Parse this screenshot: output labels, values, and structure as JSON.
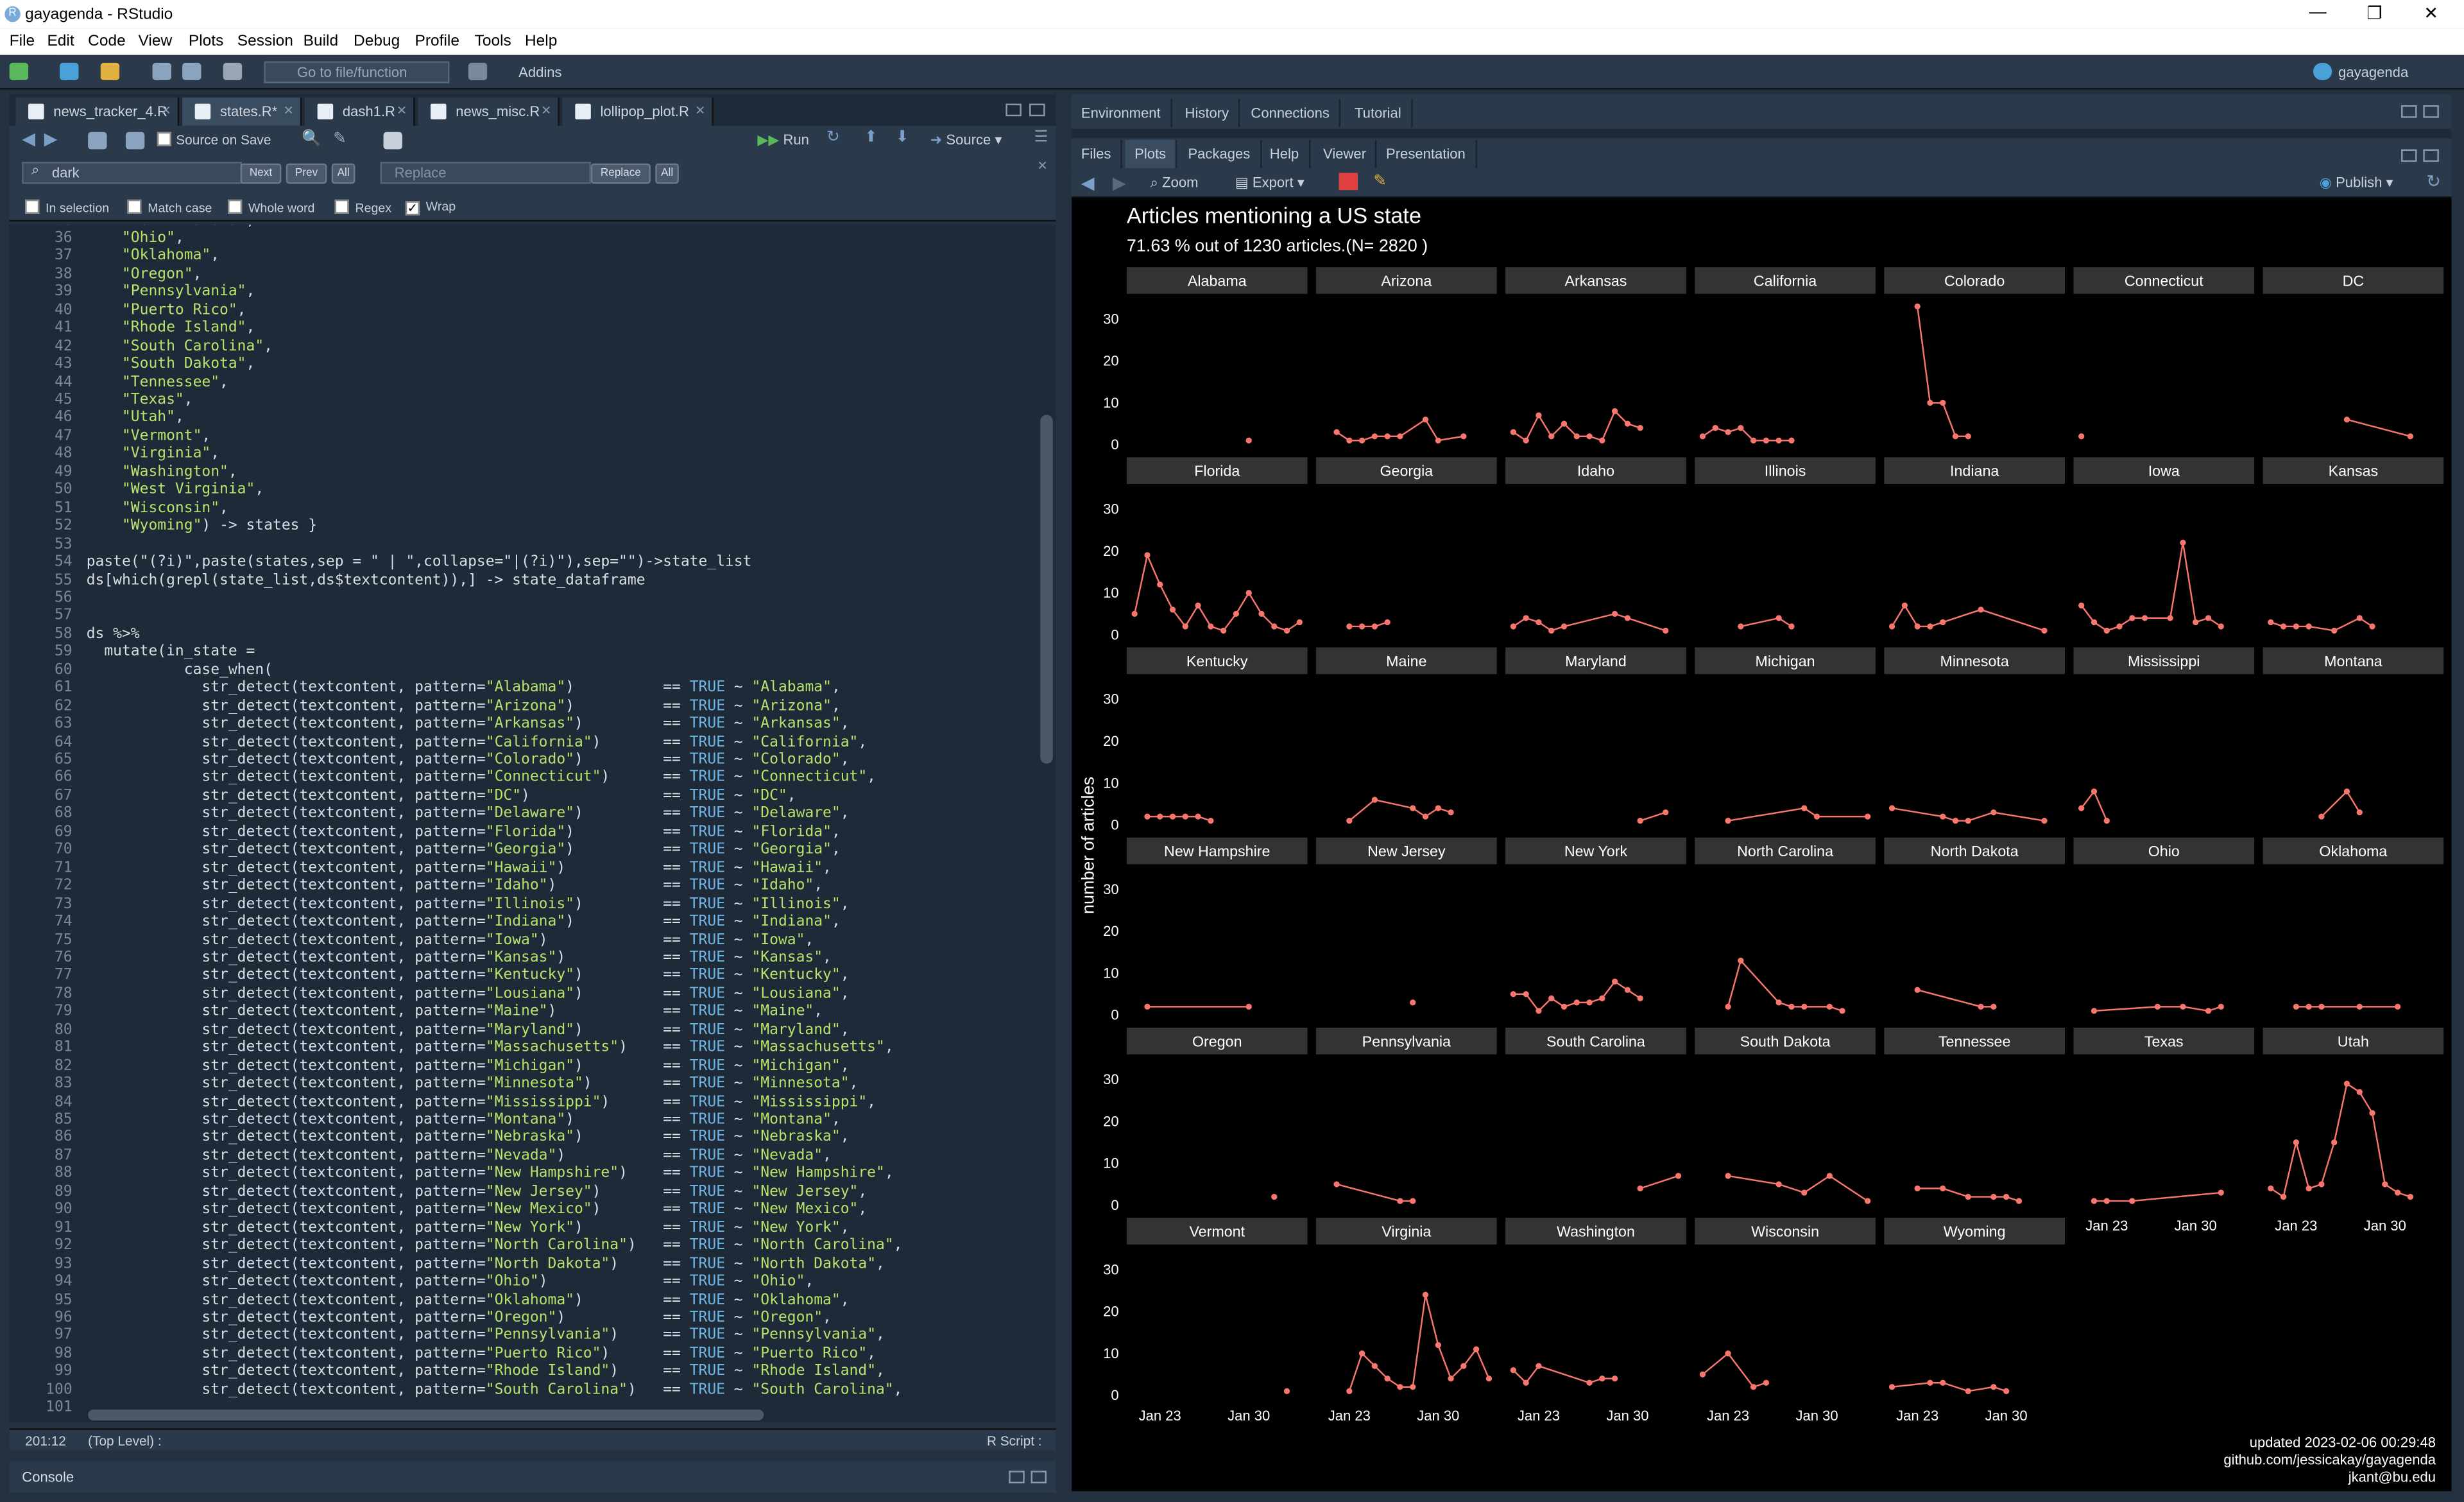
{
  "window": {
    "title": "gayagenda - RStudio",
    "logo": "R"
  },
  "menu": [
    "File",
    "Edit",
    "Code",
    "View",
    "Plots",
    "Session",
    "Build",
    "Debug",
    "Profile",
    "Tools",
    "Help"
  ],
  "toolbar": {
    "goto_placeholder": "Go to file/function",
    "addins": "Addins",
    "project": "gayagenda"
  },
  "editor": {
    "tabs": [
      "news_tracker_4.R",
      "states.R*",
      "dash1.R",
      "news_misc.R",
      "lollipop_plot.R"
    ],
    "source_on_save": "Source on Save",
    "run": "Run",
    "source": "Source",
    "find": {
      "value": "dark",
      "next": "Next",
      "prev": "Prev",
      "all": "All",
      "replace_placeholder": "Replace",
      "replace": "Replace",
      "replace_all": "All"
    },
    "options": [
      "In selection",
      "Match case",
      "Whole word",
      "Regex",
      "Wrap"
    ],
    "first_line_partial": "    \"North Dakota\",",
    "status": {
      "position": "201:12",
      "scope": "(Top Level) :",
      "filetype": "R Script :"
    }
  },
  "states": [
    "Alabama",
    "Arizona",
    "Arkansas",
    "California",
    "Colorado",
    "Connecticut",
    "DC",
    "Delaware",
    "Florida",
    "Georgia",
    "Hawaii",
    "Idaho",
    "Illinois",
    "Indiana",
    "Iowa",
    "Kansas",
    "Kentucky",
    "Lousiana",
    "Maine",
    "Maryland",
    "Massachusetts",
    "Michigan",
    "Minnesota",
    "Mississippi",
    "Montana",
    "Nebraska",
    "Nevada",
    "New Hampshire",
    "New Jersey",
    "New Mexico",
    "New York",
    "North Carolina",
    "North Dakota",
    "Ohio",
    "Oklahoma",
    "Oregon",
    "Pennsylvania",
    "Puerto Rico",
    "Rhode Island",
    "South Carolina",
    "South Dakota",
    "Tennessee",
    "Texas",
    "Utah",
    "Vermont",
    "Virginia",
    "Washington",
    "West Virginia",
    "Wisconsin",
    "Wyoming"
  ],
  "code": {
    "line54": "paste(\"(?i)\",paste(states,sep = \" | \",collapse=\"|(?i)\"),sep=\"\")->state_list",
    "line55": "ds[which(grepl(state_list,ds$textcontent)),] -> state_dataframe",
    "line58": "ds %>%",
    "line59": "  mutate(in_state =",
    "line60": "           case_when("
  },
  "console": {
    "label": "Console"
  },
  "right": {
    "tabs_top": [
      "Environment",
      "History",
      "Connections",
      "Tutorial"
    ],
    "tabs_bottom": [
      "Files",
      "Plots",
      "Packages",
      "Help",
      "Viewer",
      "Presentation"
    ],
    "zoom": "Zoom",
    "export": "Export",
    "publish": "Publish"
  },
  "chart_data": {
    "type": "line",
    "title": "Articles mentioning a US state",
    "subtitle": "71.63 % out of  1230  articles.(N= 2820 )",
    "ylabel": "number of articles",
    "xlabel": "",
    "yticks": [
      0,
      10,
      20,
      30
    ],
    "ylim": [
      0,
      33
    ],
    "xlim": [
      "Jan 21",
      "Feb 4"
    ],
    "xticks": [
      "Jan 23",
      "Jan 30"
    ],
    "line_color": "#f8766d",
    "caption": [
      "updated 2023-02-06 00:29:48",
      "github.com/jessicakay/gayagenda",
      "jkant@bu.edu"
    ],
    "facets": [
      {
        "name": "Alabama",
        "points": [
          [
            9,
            1
          ]
        ]
      },
      {
        "name": "Arizona",
        "points": [
          [
            1,
            3
          ],
          [
            2,
            1
          ],
          [
            3,
            1
          ],
          [
            4,
            2
          ],
          [
            5,
            2
          ],
          [
            6,
            2
          ],
          [
            8,
            6
          ],
          [
            9,
            1
          ],
          [
            11,
            2
          ]
        ]
      },
      {
        "name": "Arkansas",
        "points": [
          [
            0,
            3
          ],
          [
            1,
            1
          ],
          [
            2,
            7
          ],
          [
            3,
            2
          ],
          [
            4,
            5
          ],
          [
            5,
            2
          ],
          [
            6,
            2
          ],
          [
            7,
            1
          ],
          [
            8,
            8
          ],
          [
            9,
            5
          ],
          [
            10,
            4
          ]
        ]
      },
      {
        "name": "California",
        "points": [
          [
            0,
            2
          ],
          [
            1,
            4
          ],
          [
            2,
            3
          ],
          [
            3,
            4
          ],
          [
            4,
            1
          ],
          [
            5,
            1
          ],
          [
            6,
            1
          ],
          [
            7,
            1
          ]
        ]
      },
      {
        "name": "Colorado",
        "points": [
          [
            2,
            33
          ],
          [
            3,
            10
          ],
          [
            4,
            10
          ],
          [
            5,
            2
          ],
          [
            6,
            2
          ]
        ]
      },
      {
        "name": "Connecticut",
        "points": [
          [
            0,
            2
          ]
        ]
      },
      {
        "name": "DC",
        "points": [
          [
            6,
            6
          ],
          [
            11,
            2
          ]
        ]
      },
      {
        "name": "Florida",
        "points": [
          [
            0,
            5
          ],
          [
            1,
            19
          ],
          [
            2,
            12
          ],
          [
            3,
            6
          ],
          [
            4,
            2
          ],
          [
            5,
            7
          ],
          [
            6,
            2
          ],
          [
            7,
            1
          ],
          [
            8,
            5
          ],
          [
            9,
            10
          ],
          [
            10,
            5
          ],
          [
            11,
            2
          ],
          [
            12,
            1
          ],
          [
            13,
            3
          ]
        ]
      },
      {
        "name": "Georgia",
        "points": [
          [
            2,
            2
          ],
          [
            3,
            2
          ],
          [
            4,
            2
          ],
          [
            5,
            3
          ]
        ]
      },
      {
        "name": "Idaho",
        "points": [
          [
            0,
            2
          ],
          [
            1,
            4
          ],
          [
            2,
            3
          ],
          [
            3,
            1
          ],
          [
            4,
            2
          ],
          [
            8,
            5
          ],
          [
            9,
            4
          ],
          [
            12,
            1
          ]
        ]
      },
      {
        "name": "Illinois",
        "points": [
          [
            3,
            2
          ],
          [
            6,
            4
          ],
          [
            7,
            2
          ]
        ]
      },
      {
        "name": "Indiana",
        "points": [
          [
            0,
            2
          ],
          [
            1,
            7
          ],
          [
            2,
            2
          ],
          [
            3,
            2
          ],
          [
            4,
            3
          ],
          [
            7,
            6
          ],
          [
            12,
            1
          ]
        ]
      },
      {
        "name": "Iowa",
        "points": [
          [
            0,
            7
          ],
          [
            1,
            3
          ],
          [
            2,
            1
          ],
          [
            3,
            2
          ],
          [
            4,
            4
          ],
          [
            5,
            4
          ],
          [
            7,
            4
          ],
          [
            8,
            22
          ],
          [
            9,
            3
          ],
          [
            10,
            4
          ],
          [
            11,
            2
          ]
        ]
      },
      {
        "name": "Kansas",
        "points": [
          [
            0,
            3
          ],
          [
            1,
            2
          ],
          [
            2,
            2
          ],
          [
            3,
            2
          ],
          [
            5,
            1
          ],
          [
            7,
            4
          ],
          [
            8,
            2
          ]
        ]
      },
      {
        "name": "Kentucky",
        "points": [
          [
            1,
            2
          ],
          [
            2,
            2
          ],
          [
            3,
            2
          ],
          [
            4,
            2
          ],
          [
            5,
            2
          ],
          [
            6,
            1
          ]
        ]
      },
      {
        "name": "Maine",
        "points": [
          [
            2,
            1
          ],
          [
            4,
            6
          ],
          [
            7,
            4
          ],
          [
            8,
            2
          ],
          [
            9,
            4
          ],
          [
            10,
            3
          ]
        ]
      },
      {
        "name": "Maryland",
        "points": [
          [
            10,
            1
          ],
          [
            12,
            3
          ]
        ]
      },
      {
        "name": "Michigan",
        "points": [
          [
            2,
            1
          ],
          [
            8,
            4
          ],
          [
            9,
            2
          ],
          [
            13,
            2
          ]
        ]
      },
      {
        "name": "Minnesota",
        "points": [
          [
            0,
            4
          ],
          [
            4,
            2
          ],
          [
            5,
            1
          ],
          [
            6,
            1
          ],
          [
            8,
            3
          ],
          [
            12,
            1
          ]
        ]
      },
      {
        "name": "Mississippi",
        "points": [
          [
            0,
            4
          ],
          [
            1,
            8
          ],
          [
            2,
            1
          ]
        ]
      },
      {
        "name": "Montana",
        "points": [
          [
            4,
            2
          ],
          [
            6,
            8
          ],
          [
            7,
            3
          ]
        ]
      },
      {
        "name": "New Hampshire",
        "points": [
          [
            1,
            2
          ],
          [
            9,
            2
          ]
        ]
      },
      {
        "name": "New Jersey",
        "points": [
          [
            7,
            3
          ]
        ]
      },
      {
        "name": "New York",
        "points": [
          [
            0,
            5
          ],
          [
            1,
            5
          ],
          [
            2,
            1
          ],
          [
            3,
            4
          ],
          [
            4,
            2
          ],
          [
            5,
            3
          ],
          [
            6,
            3
          ],
          [
            7,
            4
          ],
          [
            8,
            8
          ],
          [
            9,
            6
          ],
          [
            10,
            4
          ]
        ]
      },
      {
        "name": "North Carolina",
        "points": [
          [
            2,
            2
          ],
          [
            3,
            13
          ],
          [
            6,
            3
          ],
          [
            7,
            2
          ],
          [
            8,
            2
          ],
          [
            10,
            2
          ],
          [
            11,
            1
          ]
        ]
      },
      {
        "name": "North Dakota",
        "points": [
          [
            2,
            6
          ],
          [
            7,
            2
          ],
          [
            8,
            2
          ]
        ]
      },
      {
        "name": "Ohio",
        "points": [
          [
            1,
            1
          ],
          [
            6,
            2
          ],
          [
            8,
            2
          ],
          [
            10,
            1
          ],
          [
            11,
            2
          ]
        ]
      },
      {
        "name": "Oklahoma",
        "points": [
          [
            2,
            2
          ],
          [
            3,
            2
          ],
          [
            4,
            2
          ],
          [
            7,
            2
          ],
          [
            10,
            2
          ]
        ]
      },
      {
        "name": "Oregon",
        "points": [
          [
            11,
            2
          ]
        ]
      },
      {
        "name": "Pennsylvania",
        "points": [
          [
            1,
            5
          ],
          [
            6,
            1
          ],
          [
            7,
            1
          ]
        ]
      },
      {
        "name": "South Carolina",
        "points": [
          [
            10,
            4
          ],
          [
            13,
            7
          ]
        ]
      },
      {
        "name": "South Dakota",
        "points": [
          [
            2,
            7
          ],
          [
            6,
            5
          ],
          [
            8,
            3
          ],
          [
            10,
            7
          ],
          [
            13,
            1
          ]
        ]
      },
      {
        "name": "Tennessee",
        "points": [
          [
            2,
            4
          ],
          [
            4,
            4
          ],
          [
            6,
            2
          ],
          [
            8,
            2
          ],
          [
            9,
            2
          ],
          [
            10,
            1
          ]
        ]
      },
      {
        "name": "Texas",
        "points": [
          [
            1,
            1
          ],
          [
            2,
            1
          ],
          [
            4,
            1
          ],
          [
            11,
            3
          ]
        ]
      },
      {
        "name": "Utah",
        "points": [
          [
            0,
            4
          ],
          [
            1,
            2
          ],
          [
            2,
            15
          ],
          [
            3,
            4
          ],
          [
            4,
            5
          ],
          [
            5,
            15
          ],
          [
            6,
            29
          ],
          [
            7,
            27
          ],
          [
            8,
            22
          ],
          [
            9,
            5
          ],
          [
            10,
            3
          ],
          [
            11,
            2
          ]
        ]
      },
      {
        "name": "Vermont",
        "points": [
          [
            12,
            1
          ]
        ]
      },
      {
        "name": "Virginia",
        "points": [
          [
            2,
            1
          ],
          [
            3,
            10
          ],
          [
            4,
            7
          ],
          [
            5,
            4
          ],
          [
            6,
            2
          ],
          [
            7,
            2
          ],
          [
            8,
            24
          ],
          [
            9,
            12
          ],
          [
            10,
            4
          ],
          [
            11,
            7
          ],
          [
            12,
            11
          ],
          [
            13,
            4
          ]
        ]
      },
      {
        "name": "Washington",
        "points": [
          [
            0,
            6
          ],
          [
            1,
            3
          ],
          [
            2,
            7
          ],
          [
            6,
            3
          ],
          [
            7,
            4
          ],
          [
            8,
            4
          ]
        ]
      },
      {
        "name": "Wisconsin",
        "points": [
          [
            0,
            5
          ],
          [
            2,
            10
          ],
          [
            4,
            2
          ],
          [
            5,
            3
          ]
        ]
      },
      {
        "name": "Wyoming",
        "points": [
          [
            0,
            2
          ],
          [
            3,
            3
          ],
          [
            4,
            3
          ],
          [
            6,
            1
          ],
          [
            8,
            2
          ],
          [
            9,
            1
          ]
        ]
      }
    ]
  }
}
